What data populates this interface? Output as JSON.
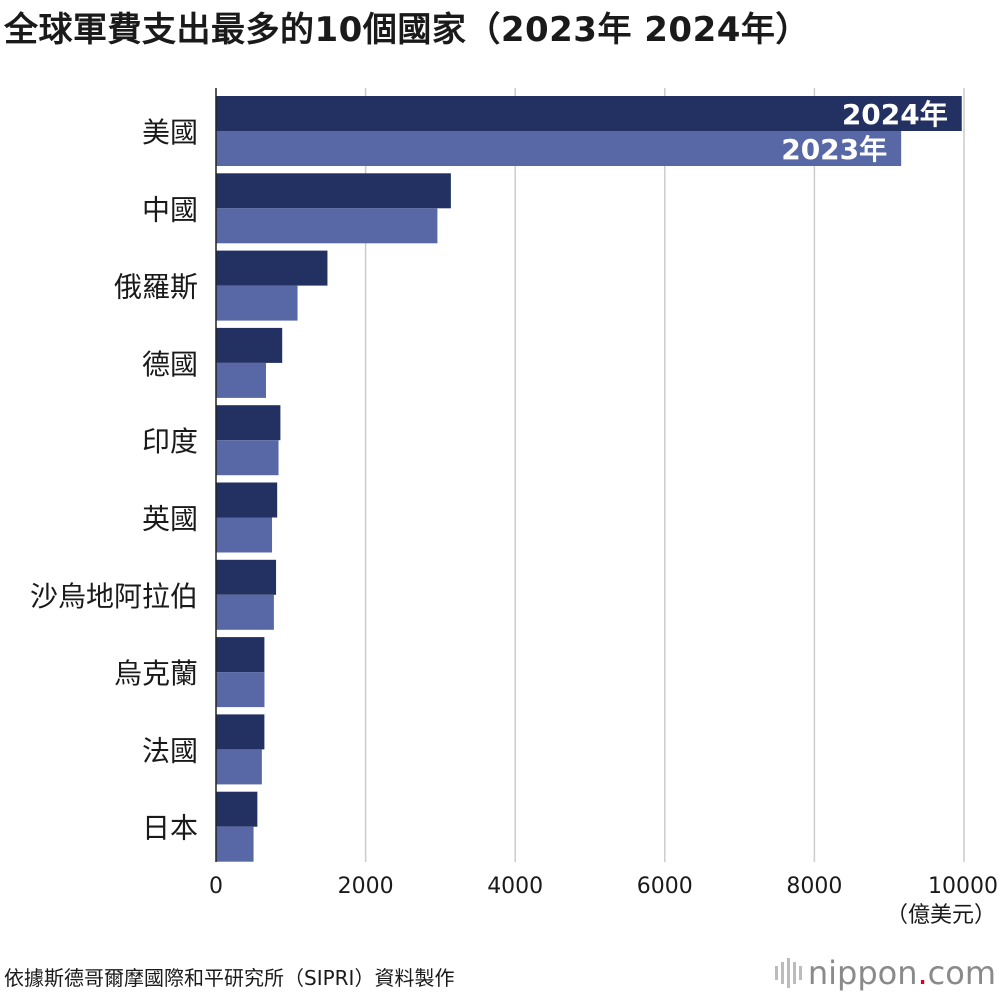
{
  "title": "全球軍費支出最多的10個國家（2023年 2024年）",
  "source": "依據斯德哥爾摩國際和平研究所（SIPRI）資料製作",
  "brand": {
    "name": "nippon",
    "dot": ".",
    "tld": "com"
  },
  "colors": {
    "series_2024": "#233062",
    "series_2023": "#5868a6",
    "grid": "#cccccc",
    "axis": "#222222",
    "brand_dot": "#e0001b"
  },
  "chart_data": {
    "type": "bar",
    "orientation": "horizontal",
    "categories": [
      "美國",
      "中國",
      "俄羅斯",
      "德國",
      "印度",
      "英國",
      "沙烏地阿拉伯",
      "烏克蘭",
      "法國",
      "日本"
    ],
    "series": [
      {
        "name": "2024年",
        "values": [
          9970,
          3140,
          1490,
          885,
          861,
          818,
          803,
          647,
          647,
          553
        ]
      },
      {
        "name": "2023年",
        "values": [
          9160,
          2960,
          1090,
          668,
          836,
          749,
          774,
          648,
          613,
          502
        ]
      }
    ],
    "xlim": [
      0,
      10000
    ],
    "xticks": [
      "0",
      "2000",
      "4000",
      "6000",
      "8000",
      "10000"
    ],
    "xunit": "（億美元）",
    "grid": true,
    "legend": "inline labels on top bar"
  }
}
